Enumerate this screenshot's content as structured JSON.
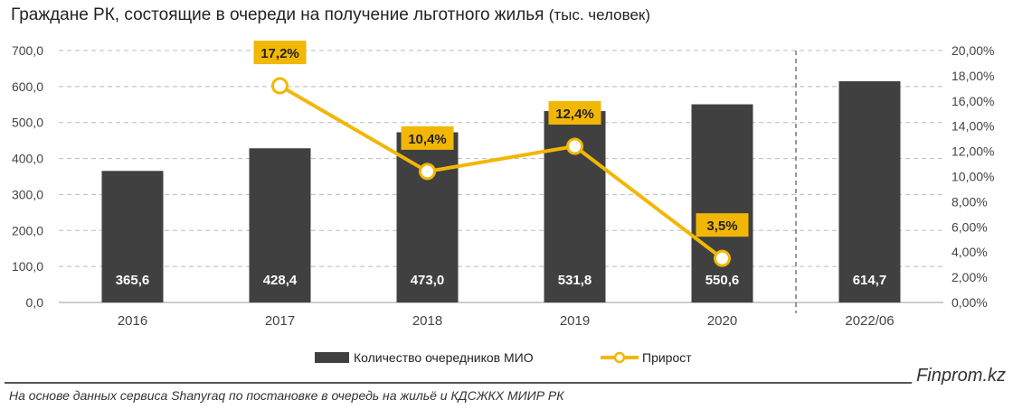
{
  "chart_data": {
    "type": "bar+line",
    "title": "Граждане РК, состоящие в очереди на получение льготного жилья",
    "title_unit": "(тыс. человек)",
    "categories": [
      "2016",
      "2017",
      "2018",
      "2019",
      "2020",
      "2022/06"
    ],
    "series": [
      {
        "name": "Количество очередников МИО",
        "type": "bar",
        "axis": "left",
        "color": "#404040",
        "values": [
          365.6,
          428.4,
          473.0,
          531.8,
          550.6,
          614.7
        ],
        "labels": [
          "365,6",
          "428,4",
          "473,0",
          "531,8",
          "550,6",
          "614,7"
        ]
      },
      {
        "name": "Прирост",
        "type": "line",
        "axis": "right",
        "color": "#F2B705",
        "values": [
          null,
          17.2,
          10.4,
          12.4,
          3.5,
          null
        ],
        "labels": [
          null,
          "17,2%",
          "10,4%",
          "12,4%",
          "3,5%",
          null
        ]
      }
    ],
    "left_axis": {
      "range": [
        0,
        700
      ],
      "ticks": [
        "0,0",
        "100,0",
        "200,0",
        "300,0",
        "400,0",
        "500,0",
        "600,0",
        "700,0"
      ]
    },
    "right_axis": {
      "range": [
        0,
        20
      ],
      "ticks": [
        "0,00%",
        "2,00%",
        "4,00%",
        "6,00%",
        "8,00%",
        "10,00%",
        "12,00%",
        "14,00%",
        "16,00%",
        "18,00%",
        "20,00%"
      ]
    },
    "grid": "dashed horizontal",
    "separator_before": "2022/06",
    "legend": "bottom"
  },
  "brand": "Finprom.kz",
  "source": "На основе данных сервиса Shanyraq по постановке в очередь на жильё и КДСЖКХ МИИР РК"
}
